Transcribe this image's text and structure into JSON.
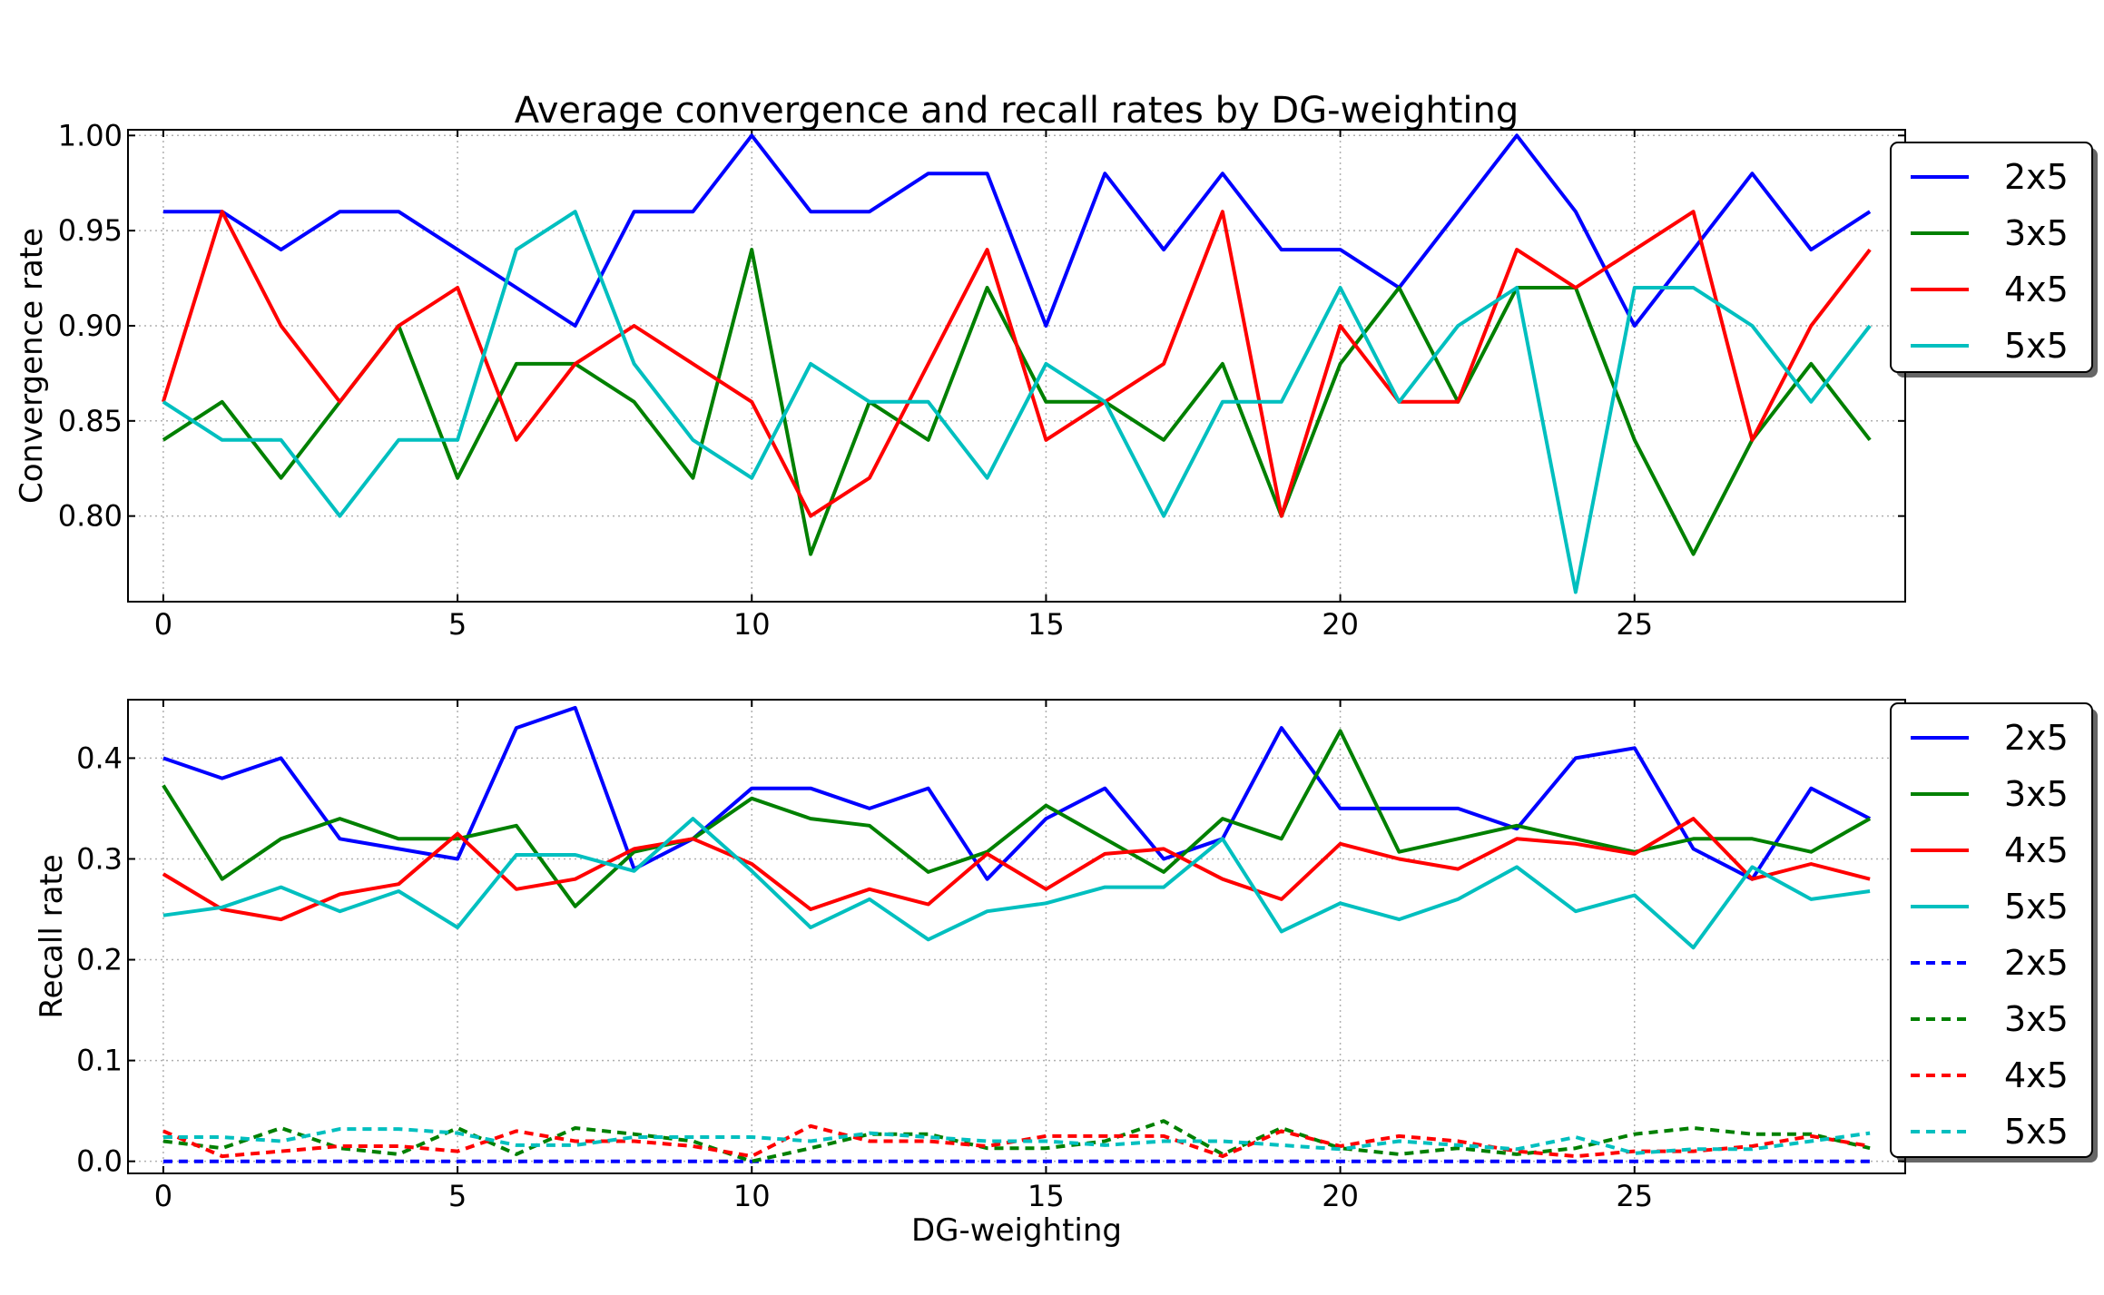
{
  "chart_data": [
    {
      "type": "line",
      "title": "Average convergence and recall rates by DG-weighting",
      "xlabel": "",
      "ylabel": "Convergence rate",
      "xlim": [
        -0.6,
        29.6
      ],
      "ylim": [
        0.755,
        1.003
      ],
      "xticks": [
        0,
        5,
        10,
        15,
        20,
        25
      ],
      "yticks": [
        0.8,
        0.85,
        0.9,
        0.95,
        1.0
      ],
      "ytick_labels": [
        "0.80",
        "0.85",
        "0.90",
        "0.95",
        "1.00"
      ],
      "grid": true,
      "legend_position": "outside-top-right",
      "x": [
        0,
        1,
        2,
        3,
        4,
        5,
        6,
        7,
        8,
        9,
        10,
        11,
        12,
        13,
        14,
        15,
        16,
        17,
        18,
        19,
        20,
        21,
        22,
        23,
        24,
        25,
        26,
        27,
        28,
        29
      ],
      "series": [
        {
          "name": "2x5",
          "color": "#0000ff",
          "style": "solid",
          "values": [
            0.96,
            0.96,
            0.94,
            0.96,
            0.96,
            0.94,
            0.92,
            0.9,
            0.96,
            0.96,
            1.0,
            0.96,
            0.96,
            0.98,
            0.98,
            0.9,
            0.98,
            0.94,
            0.98,
            0.94,
            0.94,
            0.92,
            0.96,
            1.0,
            0.96,
            0.9,
            0.94,
            0.98,
            0.94,
            0.96
          ]
        },
        {
          "name": "3x5",
          "color": "#008000",
          "style": "solid",
          "values": [
            0.84,
            0.86,
            0.82,
            0.86,
            0.9,
            0.82,
            0.88,
            0.88,
            0.86,
            0.82,
            0.94,
            0.78,
            0.86,
            0.84,
            0.92,
            0.86,
            0.86,
            0.84,
            0.88,
            0.8,
            0.88,
            0.92,
            0.86,
            0.92,
            0.92,
            0.84,
            0.78,
            0.84,
            0.88,
            0.84
          ]
        },
        {
          "name": "4x5",
          "color": "#ff0000",
          "style": "solid",
          "values": [
            0.86,
            0.96,
            0.9,
            0.86,
            0.9,
            0.92,
            0.84,
            0.88,
            0.9,
            0.88,
            0.86,
            0.8,
            0.82,
            0.88,
            0.94,
            0.84,
            0.86,
            0.88,
            0.96,
            0.8,
            0.9,
            0.86,
            0.86,
            0.94,
            0.92,
            0.94,
            0.96,
            0.84,
            0.9,
            0.94
          ]
        },
        {
          "name": "5x5",
          "color": "#00bfbf",
          "style": "solid",
          "values": [
            0.86,
            0.84,
            0.84,
            0.8,
            0.84,
            0.84,
            0.94,
            0.96,
            0.88,
            0.84,
            0.82,
            0.88,
            0.86,
            0.86,
            0.82,
            0.88,
            0.86,
            0.8,
            0.86,
            0.86,
            0.92,
            0.86,
            0.9,
            0.92,
            0.76,
            0.92,
            0.92,
            0.9,
            0.86,
            0.9
          ]
        }
      ]
    },
    {
      "type": "line",
      "title": "",
      "xlabel": "DG-weighting",
      "ylabel": "Recall rate",
      "xlim": [
        -0.6,
        29.6
      ],
      "ylim": [
        -0.012,
        0.458
      ],
      "xticks": [
        0,
        5,
        10,
        15,
        20,
        25
      ],
      "yticks": [
        0.0,
        0.1,
        0.2,
        0.3,
        0.4
      ],
      "ytick_labels": [
        "0.0",
        "0.1",
        "0.2",
        "0.3",
        "0.4"
      ],
      "grid": true,
      "legend_position": "outside-top-right",
      "x": [
        0,
        1,
        2,
        3,
        4,
        5,
        6,
        7,
        8,
        9,
        10,
        11,
        12,
        13,
        14,
        15,
        16,
        17,
        18,
        19,
        20,
        21,
        22,
        23,
        24,
        25,
        26,
        27,
        28,
        29
      ],
      "series": [
        {
          "name": "2x5",
          "color": "#0000ff",
          "style": "solid",
          "values": [
            0.4,
            0.38,
            0.4,
            0.32,
            0.31,
            0.3,
            0.43,
            0.45,
            0.29,
            0.32,
            0.37,
            0.37,
            0.35,
            0.37,
            0.28,
            0.34,
            0.37,
            0.3,
            0.32,
            0.43,
            0.35,
            0.35,
            0.35,
            0.33,
            0.4,
            0.41,
            0.31,
            0.28,
            0.37,
            0.34
          ]
        },
        {
          "name": "3x5",
          "color": "#008000",
          "style": "solid",
          "values": [
            0.373,
            0.28,
            0.32,
            0.34,
            0.32,
            0.32,
            0.333,
            0.253,
            0.307,
            0.32,
            0.36,
            0.34,
            0.333,
            0.287,
            0.307,
            0.353,
            0.32,
            0.287,
            0.34,
            0.32,
            0.427,
            0.307,
            0.32,
            0.333,
            0.32,
            0.307,
            0.32,
            0.32,
            0.307,
            0.34
          ]
        },
        {
          "name": "4x5",
          "color": "#ff0000",
          "style": "solid",
          "values": [
            0.285,
            0.25,
            0.24,
            0.265,
            0.275,
            0.325,
            0.27,
            0.28,
            0.31,
            0.32,
            0.295,
            0.25,
            0.27,
            0.255,
            0.305,
            0.27,
            0.305,
            0.31,
            0.28,
            0.26,
            0.315,
            0.3,
            0.29,
            0.32,
            0.315,
            0.305,
            0.34,
            0.28,
            0.295,
            0.28
          ]
        },
        {
          "name": "5x5",
          "color": "#00bfbf",
          "style": "solid",
          "values": [
            0.244,
            0.252,
            0.272,
            0.248,
            0.268,
            0.232,
            0.304,
            0.304,
            0.288,
            0.34,
            0.288,
            0.232,
            0.26,
            0.22,
            0.248,
            0.256,
            0.272,
            0.272,
            0.32,
            0.228,
            0.256,
            0.24,
            0.26,
            0.292,
            0.248,
            0.264,
            0.212,
            0.292,
            0.26,
            0.268
          ]
        },
        {
          "name": "2x5",
          "color": "#0000ff",
          "style": "dashed",
          "values": [
            0,
            0,
            0,
            0,
            0,
            0,
            0,
            0,
            0,
            0,
            0,
            0,
            0,
            0,
            0,
            0,
            0,
            0,
            0,
            0,
            0,
            0,
            0,
            0,
            0,
            0,
            0,
            0,
            0,
            0
          ]
        },
        {
          "name": "3x5",
          "color": "#008000",
          "style": "dashed",
          "values": [
            0.02,
            0.013,
            0.033,
            0.013,
            0.007,
            0.033,
            0.007,
            0.033,
            0.027,
            0.02,
            0.0,
            0.013,
            0.027,
            0.027,
            0.013,
            0.013,
            0.02,
            0.04,
            0.007,
            0.033,
            0.013,
            0.007,
            0.013,
            0.007,
            0.013,
            0.027,
            0.033,
            0.027,
            0.027,
            0.013
          ]
        },
        {
          "name": "4x5",
          "color": "#ff0000",
          "style": "dashed",
          "values": [
            0.03,
            0.005,
            0.01,
            0.015,
            0.015,
            0.01,
            0.03,
            0.02,
            0.02,
            0.015,
            0.005,
            0.035,
            0.02,
            0.02,
            0.015,
            0.025,
            0.025,
            0.025,
            0.005,
            0.03,
            0.015,
            0.025,
            0.02,
            0.01,
            0.005,
            0.01,
            0.01,
            0.015,
            0.025,
            0.015
          ]
        },
        {
          "name": "5x5",
          "color": "#00bfbf",
          "style": "dashed",
          "values": [
            0.024,
            0.024,
            0.02,
            0.032,
            0.032,
            0.028,
            0.016,
            0.016,
            0.024,
            0.024,
            0.024,
            0.02,
            0.028,
            0.024,
            0.02,
            0.02,
            0.016,
            0.02,
            0.02,
            0.016,
            0.012,
            0.02,
            0.016,
            0.012,
            0.024,
            0.008,
            0.012,
            0.012,
            0.02,
            0.028
          ]
        }
      ]
    }
  ]
}
